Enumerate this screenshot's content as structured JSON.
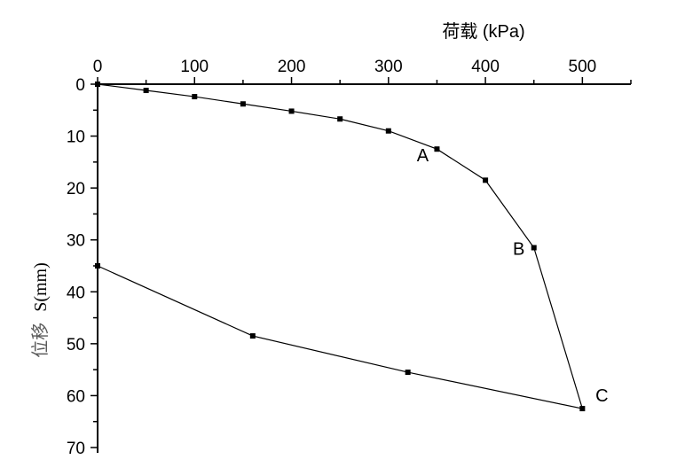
{
  "chart_data": {
    "type": "line",
    "title": "",
    "xlabel": "荷载  (kPa)",
    "ylabel": {
      "prefix": "位移",
      "suffix": "S(mm)"
    },
    "x_axis_position": "top",
    "y_inverted": true,
    "xlim": [
      0,
      550
    ],
    "ylim": [
      0,
      70
    ],
    "x_ticks": [
      0,
      100,
      200,
      300,
      400,
      500
    ],
    "y_ticks": [
      0,
      10,
      20,
      30,
      40,
      50,
      60,
      70
    ],
    "grid": false,
    "legend": "none",
    "series": [
      {
        "color": "#000000",
        "x": [
          0,
          50,
          100,
          150,
          200,
          250,
          300,
          350,
          400,
          450,
          500,
          320,
          160,
          0
        ],
        "y": [
          0,
          1.2,
          2.4,
          3.8,
          5.2,
          6.7,
          9.0,
          12.5,
          18.5,
          31.5,
          62.5,
          55.5,
          48.5,
          35.0
        ]
      }
    ],
    "annotations": [
      {
        "text": "A",
        "x": 350,
        "y": 12.5
      },
      {
        "text": "B",
        "x": 450,
        "y": 31.5
      },
      {
        "text": "C",
        "x": 500,
        "y": 62.5
      }
    ]
  }
}
